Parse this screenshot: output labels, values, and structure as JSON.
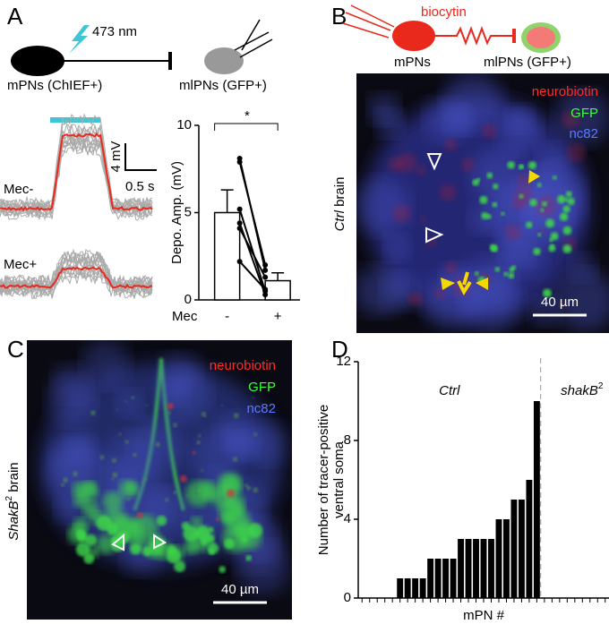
{
  "panels": {
    "A": {
      "letter": "A",
      "wavelength": "473 nm",
      "pre": "mPNs (ChIEF+)",
      "post": "mlPNs (GFP+)",
      "trace_labels": [
        "Mec-",
        "Mec+"
      ],
      "scale_y": "4 mV",
      "scale_x": "0.5 s"
    },
    "B": {
      "letter": "B",
      "tracer": "biocytin",
      "pre": "mPNs",
      "post": "mlPNs (GFP+)",
      "channels": [
        "neurobiotin",
        "GFP",
        "nc82"
      ],
      "scale": "40 µm",
      "side_label": {
        "italic": "Ctrl",
        "rest": "brain"
      }
    },
    "C": {
      "letter": "C",
      "channels": [
        "neurobiotin",
        "GFP",
        "nc82"
      ],
      "scale": "40 µm",
      "side_label": {
        "italic": "ShakB",
        "sup": "2",
        "rest": "brain"
      }
    },
    "D": {
      "letter": "D"
    }
  },
  "chart_data": [
    {
      "type": "bar",
      "ylabel": "Depo. Amp. (mV)",
      "xlabel": "Mec",
      "categories": [
        "-",
        "+"
      ],
      "values": [
        5.0,
        1.1
      ],
      "errors": [
        1.3,
        0.45
      ],
      "paired": [
        [
          8.1,
          1.7
        ],
        [
          7.9,
          2.0
        ],
        [
          5.2,
          0.5
        ],
        [
          4.4,
          0.3
        ],
        [
          4.1,
          1.3
        ],
        [
          2.2,
          0.6
        ]
      ],
      "significance": "*",
      "ylim": [
        0,
        10
      ],
      "yticks": [
        0,
        5,
        10
      ]
    },
    {
      "type": "bar",
      "ylabel": [
        "Number of tracer-positive",
        "ventral soma"
      ],
      "xlabel": "mPN #",
      "groups": [
        {
          "name": {
            "text": "Ctrl"
          },
          "values": [
            0,
            0,
            0,
            0,
            0,
            1,
            1,
            1,
            1,
            2,
            2,
            2,
            2,
            3,
            3,
            3,
            3,
            3,
            4,
            4,
            5,
            5,
            6,
            10
          ]
        },
        {
          "name": {
            "text": "shakB",
            "sup": "2"
          },
          "values": [
            0,
            0,
            0,
            0,
            0,
            0,
            0,
            0,
            0
          ]
        }
      ],
      "color": "#000000",
      "ylim": [
        0,
        12
      ],
      "yticks": [
        0,
        4,
        8,
        12
      ]
    }
  ]
}
